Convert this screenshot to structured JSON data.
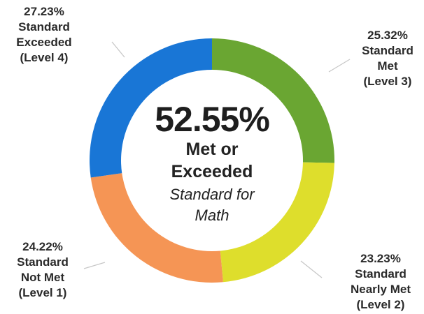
{
  "chart_data": {
    "type": "pie",
    "donut": true,
    "slices": [
      {
        "value": 25.32,
        "percent_label": "25.32%",
        "label_lines": [
          "Standard",
          "Met",
          "(Level 3)"
        ],
        "color": "#6aa632"
      },
      {
        "value": 23.23,
        "percent_label": "23.23%",
        "label_lines": [
          "Standard",
          "Nearly Met",
          "(Level 2)"
        ],
        "color": "#dede2c"
      },
      {
        "value": 24.22,
        "percent_label": "24.22%",
        "label_lines": [
          "Standard",
          "Not Met",
          "(Level 1)"
        ],
        "color": "#f59555"
      },
      {
        "value": 27.23,
        "percent_label": "27.23%",
        "label_lines": [
          "Standard",
          "Exceeded",
          "(Level 4)"
        ],
        "color": "#1976d6"
      }
    ],
    "center": {
      "value_label": "52.55%",
      "line1": "Met or",
      "line2": "Exceeded",
      "line3": "Standard for",
      "line4": "Math"
    }
  }
}
